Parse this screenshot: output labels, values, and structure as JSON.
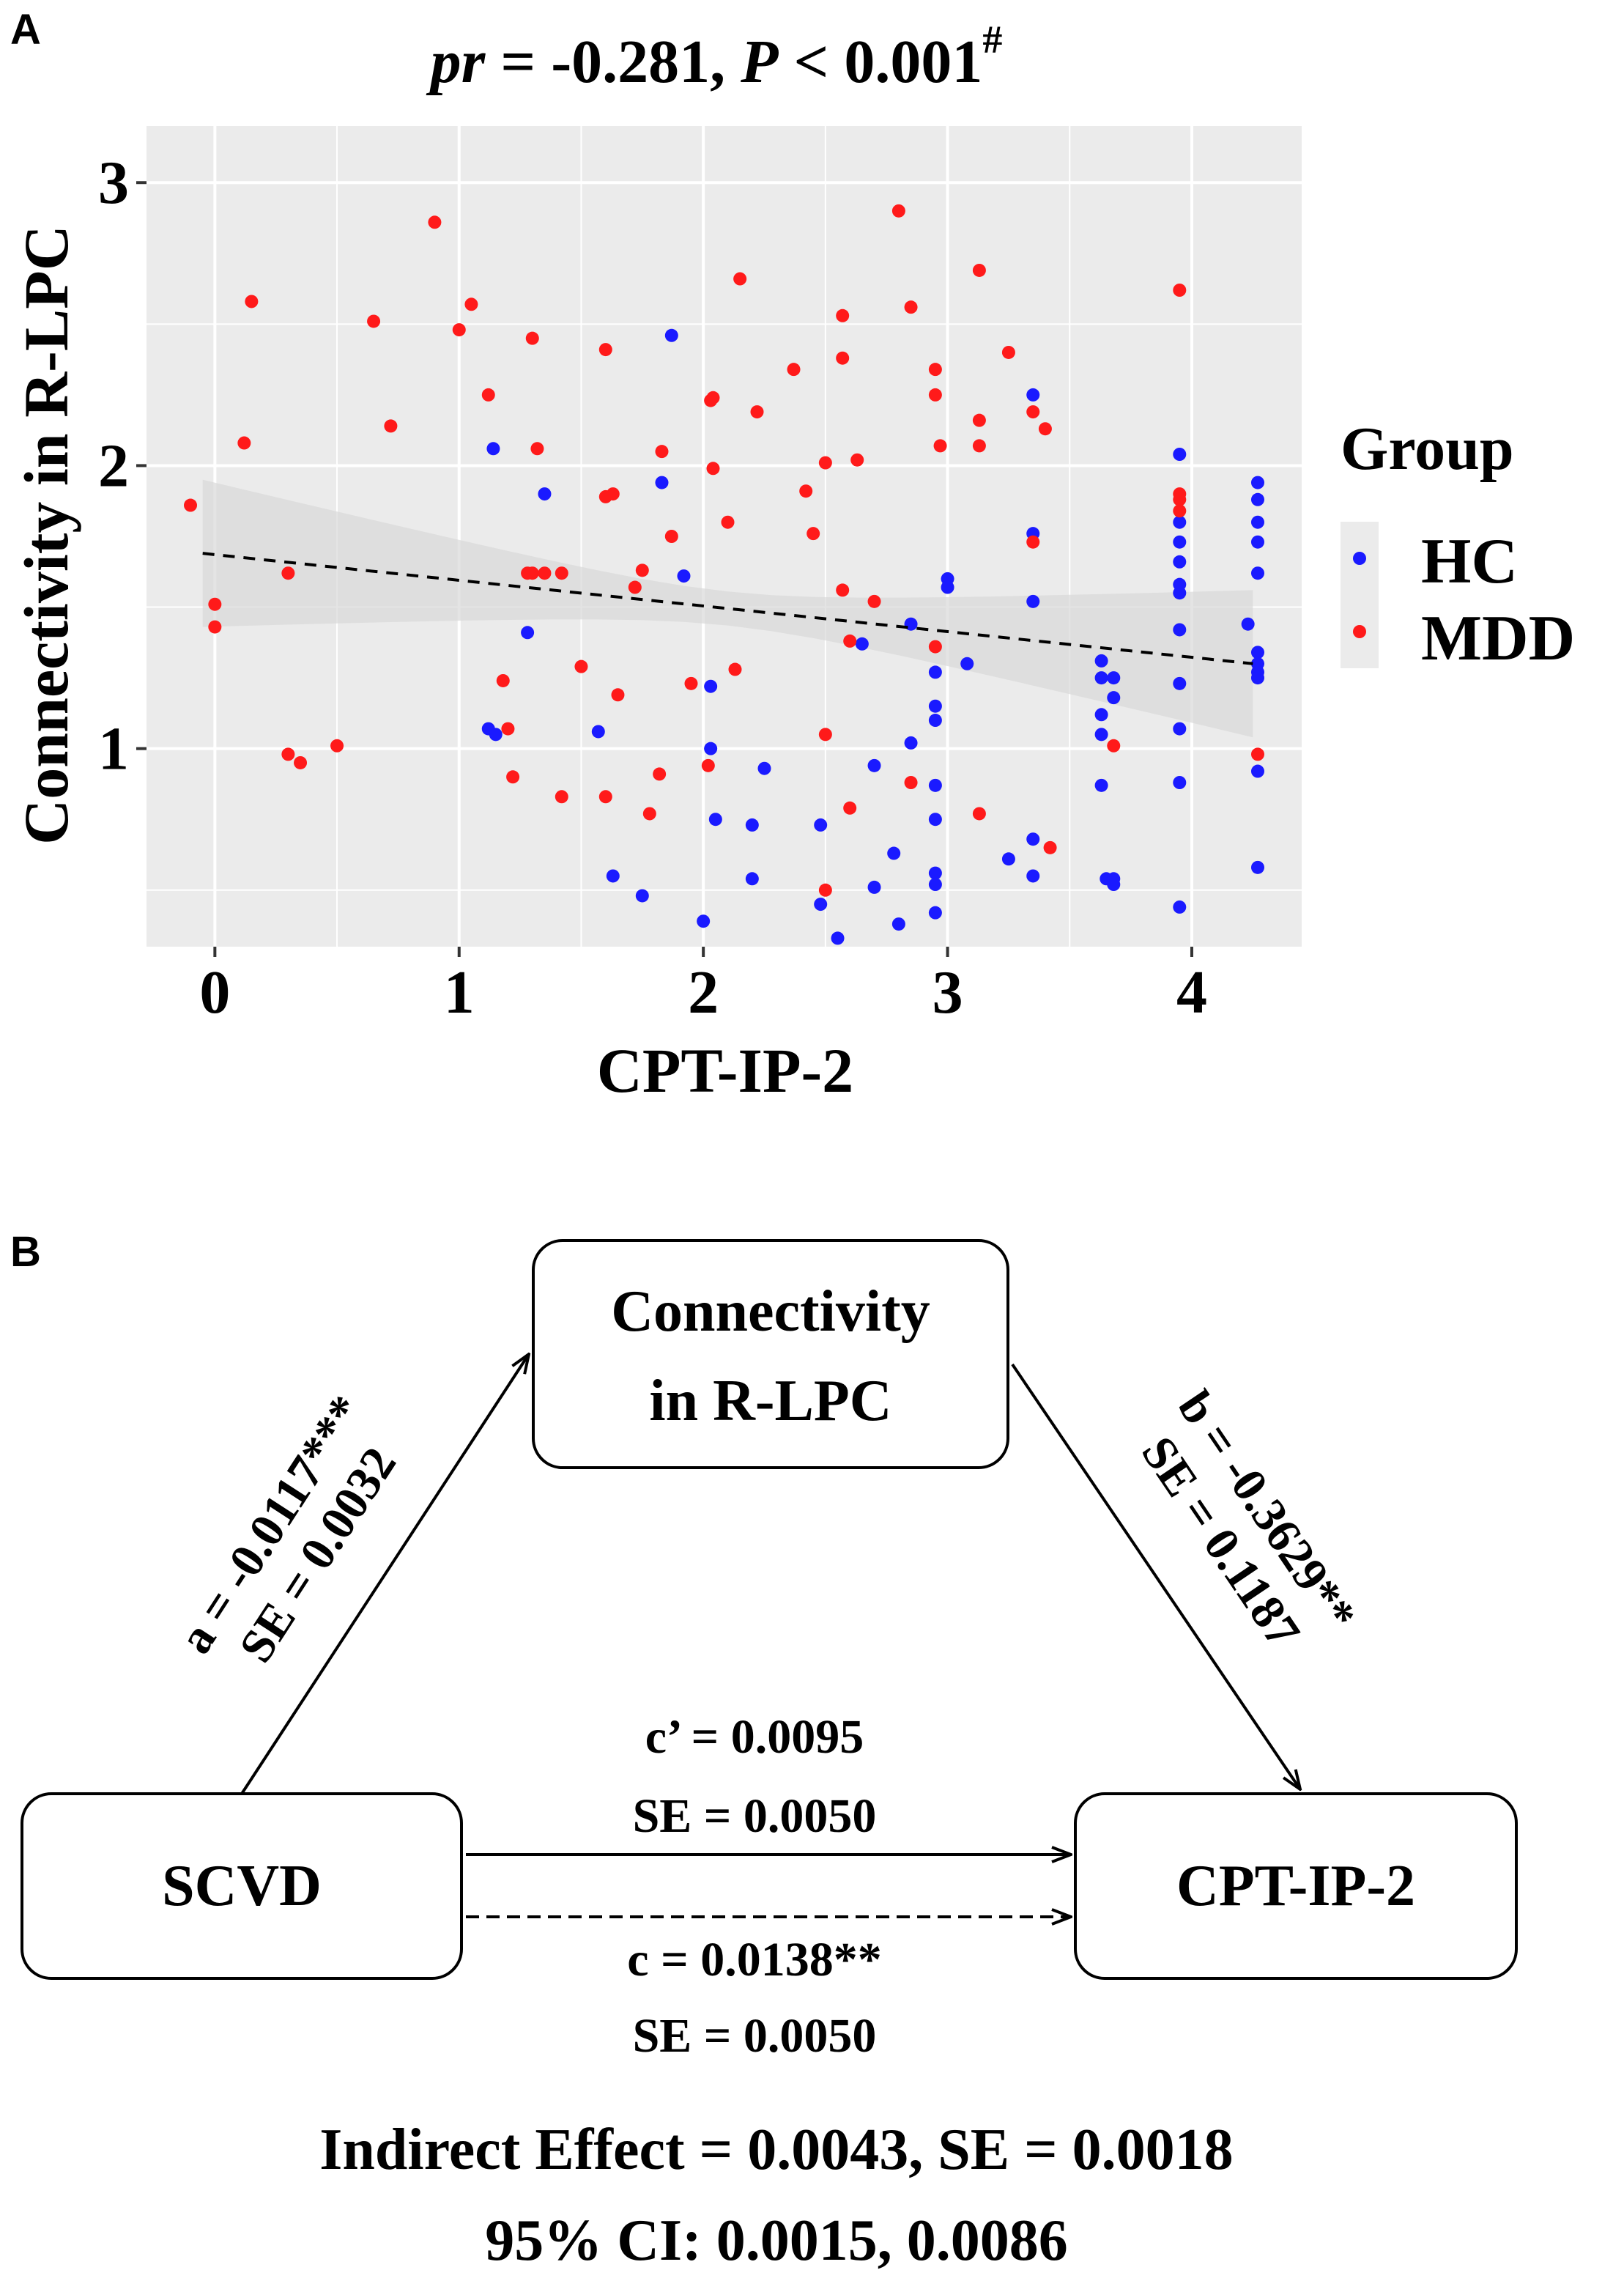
{
  "panel_a": {
    "letter": "A",
    "title_pr": "pr",
    "title_rest": " = -0.281, ",
    "title_p": "P",
    "title_tail": " < 0.001",
    "title_sup": "#"
  },
  "panel_b": {
    "letter": "B",
    "box_mediator_line1": "Connectivity",
    "box_mediator_line2": "in R-LPC",
    "box_x": "SCVD",
    "box_y": "CPT-IP-2",
    "path_a_line1": "a = -0.0117***",
    "path_a_line2": "SE = 0.0032",
    "path_b_line1": "b = -0.3629**",
    "path_b_line2": "SE = 0.1187",
    "path_cprime_line1": "c’ = 0.0095",
    "path_cprime_line2": "SE = 0.0050",
    "path_c_line1": "c = 0.0138**",
    "path_c_line2": "SE = 0.0050",
    "indirect_line1": "Indirect Effect = 0.0043, SE = 0.0018",
    "indirect_line2": "95% CI: 0.0015, 0.0086"
  },
  "chart_data": {
    "type": "scatter",
    "title": "pr = -0.281, P < 0.001#",
    "xlabel": "CPT-IP-2",
    "ylabel": "Connectivity in R-LPC",
    "xlim": [
      -0.28,
      4.45
    ],
    "ylim": [
      0.3,
      3.2
    ],
    "xticks": [
      0,
      1,
      2,
      3,
      4
    ],
    "yticks": [
      1,
      2,
      3
    ],
    "grid": true,
    "legend": {
      "title": "Group",
      "placement": "right"
    },
    "colors": {
      "HC": "#1a1aff",
      "MDD": "#ff1a1a",
      "panel_bg": "#ebebeb",
      "grid": "#ffffff",
      "ribbon": "#d9d9d9"
    },
    "trend": {
      "x1": -0.05,
      "y1": 1.69,
      "x2": 4.25,
      "y2": 1.3,
      "ci_half_width_ends": 0.26,
      "ci_half_width_mid": 0.06
    },
    "series": [
      {
        "name": "HC",
        "color": "#1a1aff",
        "points": [
          [
            1.87,
            2.46
          ],
          [
            1.14,
            2.06
          ],
          [
            1.35,
            1.9
          ],
          [
            1.83,
            1.94
          ],
          [
            1.92,
            1.61
          ],
          [
            1.12,
            1.07
          ],
          [
            1.15,
            1.05
          ],
          [
            1.28,
            1.41
          ],
          [
            1.57,
            1.06
          ],
          [
            1.63,
            0.55
          ],
          [
            1.75,
            0.48
          ],
          [
            2.03,
            1.22
          ],
          [
            2.03,
            1.0
          ],
          [
            2.05,
            0.75
          ],
          [
            2.0,
            0.39
          ],
          [
            2.2,
            0.73
          ],
          [
            2.25,
            0.93
          ],
          [
            2.2,
            0.54
          ],
          [
            2.48,
            0.73
          ],
          [
            2.48,
            0.45
          ],
          [
            2.55,
            0.33
          ],
          [
            2.65,
            1.37
          ],
          [
            2.7,
            0.94
          ],
          [
            2.7,
            0.51
          ],
          [
            2.78,
            0.63
          ],
          [
            2.8,
            0.38
          ],
          [
            2.85,
            1.44
          ],
          [
            2.85,
            1.02
          ],
          [
            2.95,
            1.27
          ],
          [
            2.95,
            1.15
          ],
          [
            2.95,
            1.1
          ],
          [
            2.95,
            0.87
          ],
          [
            2.95,
            0.75
          ],
          [
            2.95,
            0.56
          ],
          [
            2.95,
            0.52
          ],
          [
            2.95,
            0.42
          ],
          [
            3.0,
            1.6
          ],
          [
            3.0,
            1.57
          ],
          [
            3.08,
            1.3
          ],
          [
            3.25,
            0.61
          ],
          [
            3.35,
            2.25
          ],
          [
            3.35,
            1.76
          ],
          [
            3.35,
            1.52
          ],
          [
            3.35,
            0.68
          ],
          [
            3.35,
            0.55
          ],
          [
            3.63,
            1.31
          ],
          [
            3.63,
            1.25
          ],
          [
            3.63,
            1.12
          ],
          [
            3.63,
            1.05
          ],
          [
            3.63,
            0.87
          ],
          [
            3.65,
            0.54
          ],
          [
            3.68,
            1.25
          ],
          [
            3.68,
            1.18
          ],
          [
            3.68,
            0.54
          ],
          [
            3.68,
            0.52
          ],
          [
            3.95,
            2.04
          ],
          [
            3.95,
            1.8
          ],
          [
            3.95,
            1.73
          ],
          [
            3.95,
            1.66
          ],
          [
            3.95,
            1.58
          ],
          [
            3.95,
            1.55
          ],
          [
            3.95,
            1.42
          ],
          [
            3.95,
            1.23
          ],
          [
            3.95,
            1.07
          ],
          [
            3.95,
            0.88
          ],
          [
            3.95,
            0.44
          ],
          [
            4.23,
            1.44
          ],
          [
            4.27,
            1.94
          ],
          [
            4.27,
            1.88
          ],
          [
            4.27,
            1.8
          ],
          [
            4.27,
            1.73
          ],
          [
            4.27,
            1.62
          ],
          [
            4.27,
            1.34
          ],
          [
            4.27,
            1.3
          ],
          [
            4.27,
            1.27
          ],
          [
            4.27,
            1.25
          ],
          [
            4.27,
            0.92
          ],
          [
            4.27,
            0.58
          ]
        ]
      },
      {
        "name": "MDD",
        "color": "#ff1a1a",
        "points": [
          [
            -0.1,
            1.86
          ],
          [
            0.0,
            1.51
          ],
          [
            0.0,
            1.43
          ],
          [
            0.12,
            2.08
          ],
          [
            0.15,
            2.58
          ],
          [
            0.3,
            1.62
          ],
          [
            0.3,
            0.98
          ],
          [
            0.35,
            0.95
          ],
          [
            0.5,
            1.01
          ],
          [
            0.65,
            2.51
          ],
          [
            0.72,
            2.14
          ],
          [
            0.9,
            2.86
          ],
          [
            1.0,
            2.48
          ],
          [
            1.05,
            2.57
          ],
          [
            1.12,
            2.25
          ],
          [
            1.18,
            1.24
          ],
          [
            1.2,
            1.07
          ],
          [
            1.22,
            0.9
          ],
          [
            1.28,
            1.62
          ],
          [
            1.3,
            1.62
          ],
          [
            1.3,
            2.45
          ],
          [
            1.32,
            2.06
          ],
          [
            1.35,
            1.62
          ],
          [
            1.42,
            1.62
          ],
          [
            1.42,
            0.83
          ],
          [
            1.5,
            1.29
          ],
          [
            1.6,
            2.41
          ],
          [
            1.6,
            1.89
          ],
          [
            1.6,
            0.83
          ],
          [
            1.63,
            1.9
          ],
          [
            1.65,
            1.19
          ],
          [
            1.72,
            1.57
          ],
          [
            1.75,
            1.63
          ],
          [
            1.78,
            0.77
          ],
          [
            1.82,
            0.91
          ],
          [
            1.83,
            2.05
          ],
          [
            1.87,
            1.75
          ],
          [
            1.95,
            1.23
          ],
          [
            2.02,
            0.94
          ],
          [
            2.03,
            2.23
          ],
          [
            2.04,
            2.24
          ],
          [
            2.04,
            1.99
          ],
          [
            2.1,
            1.8
          ],
          [
            2.13,
            1.28
          ],
          [
            2.15,
            2.66
          ],
          [
            2.22,
            2.19
          ],
          [
            2.37,
            2.34
          ],
          [
            2.42,
            1.91
          ],
          [
            2.45,
            1.76
          ],
          [
            2.5,
            2.01
          ],
          [
            2.5,
            1.05
          ],
          [
            2.5,
            0.5
          ],
          [
            2.57,
            2.53
          ],
          [
            2.57,
            2.38
          ],
          [
            2.57,
            1.56
          ],
          [
            2.6,
            1.38
          ],
          [
            2.6,
            0.79
          ],
          [
            2.63,
            2.02
          ],
          [
            2.7,
            1.52
          ],
          [
            2.8,
            2.9
          ],
          [
            2.85,
            2.56
          ],
          [
            2.85,
            0.88
          ],
          [
            2.95,
            2.34
          ],
          [
            2.95,
            2.25
          ],
          [
            2.97,
            2.07
          ],
          [
            2.95,
            1.36
          ],
          [
            3.13,
            2.69
          ],
          [
            3.13,
            2.16
          ],
          [
            3.13,
            2.07
          ],
          [
            3.13,
            0.77
          ],
          [
            3.25,
            2.4
          ],
          [
            3.35,
            2.19
          ],
          [
            3.35,
            1.73
          ],
          [
            3.4,
            2.13
          ],
          [
            3.42,
            0.65
          ],
          [
            3.68,
            1.01
          ],
          [
            3.95,
            2.62
          ],
          [
            3.95,
            1.9
          ],
          [
            3.95,
            1.88
          ],
          [
            3.95,
            1.84
          ],
          [
            4.27,
            0.98
          ]
        ]
      }
    ]
  }
}
